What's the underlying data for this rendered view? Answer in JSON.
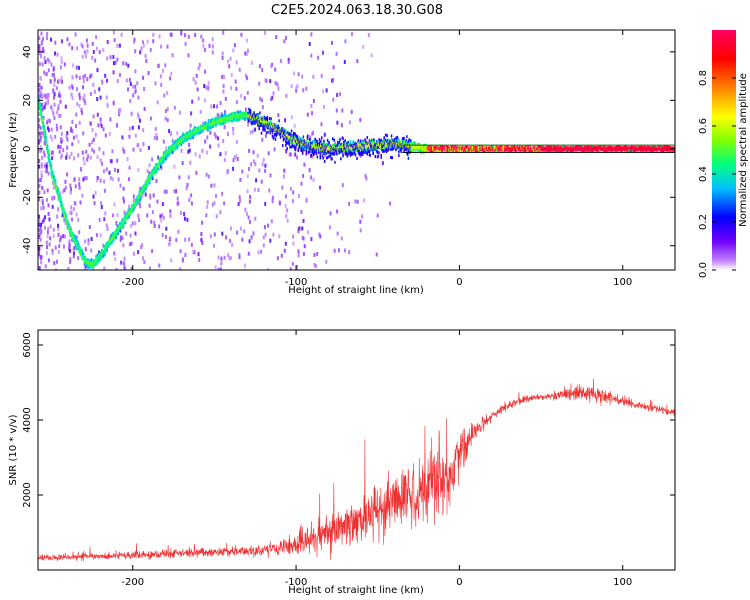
{
  "figure_title": "C2E5.2024.063.18.30.G08",
  "chart_data": [
    {
      "type": "heatmap",
      "xlabel": "Height of straight line (km)",
      "ylabel": "Frequency (Hz)",
      "xlim": [
        -258,
        132
      ],
      "ylim": [
        -50,
        49
      ],
      "xticks": [
        -200,
        -100,
        0,
        100
      ],
      "yticks": [
        -40,
        -20,
        0,
        20,
        40
      ],
      "xtick_labels": [
        "-200",
        "-100",
        "0",
        "100"
      ],
      "ytick_labels": [
        "-40",
        "-20",
        "0",
        "20",
        "40"
      ],
      "colorbar": {
        "label": "Normalized spectral amplitude",
        "range": [
          0,
          1
        ],
        "ticks": [
          0.0,
          0.2,
          0.4,
          0.6,
          0.8
        ],
        "tick_labels": [
          "0.0",
          "0.2",
          "0.4",
          "0.6",
          "0.8"
        ],
        "colormap": [
          "#ffffff",
          "#c080ff",
          "#7000ff",
          "#0000ff",
          "#00c0ff",
          "#00ff80",
          "#80ff00",
          "#ffff00",
          "#ff8000",
          "#ff0000",
          "#ff0060"
        ]
      },
      "ridge": {
        "x": [
          -258,
          -250,
          -240,
          -230,
          -225,
          -220,
          -210,
          -200,
          -190,
          -180,
          -170,
          -160,
          -150,
          -140,
          -130,
          -120,
          -110,
          -100,
          -90,
          -80,
          -70,
          -60,
          -50,
          -40,
          -30,
          -20,
          0,
          50,
          132
        ],
        "y": [
          20,
          -10,
          -32,
          -46,
          -48,
          -44,
          -34,
          -24,
          -12,
          -2,
          4,
          8,
          11,
          13,
          14,
          11,
          7,
          3,
          1,
          0,
          0.5,
          1,
          1.5,
          2,
          1,
          0,
          0,
          0,
          0
        ]
      },
      "reference_lines": [
        1.5,
        -1.5
      ]
    },
    {
      "type": "line",
      "xlabel": "Height of straight line (km)",
      "ylabel": "SNR (10 * v/v)",
      "xlim": [
        -258,
        132
      ],
      "ylim": [
        0,
        6400
      ],
      "xticks": [
        -200,
        -100,
        0,
        100
      ],
      "yticks": [
        2000,
        4000,
        6000
      ],
      "xtick_labels": [
        "-200",
        "-100",
        "0",
        "100"
      ],
      "ytick_labels": [
        "2000",
        "4000",
        "6000"
      ],
      "color": "#f03030",
      "series": [
        {
          "x": [
            -258,
            -240,
            -220,
            -200,
            -180,
            -160,
            -140,
            -120,
            -110,
            -100,
            -90,
            -80,
            -70,
            -60,
            -50,
            -40,
            -30,
            -20,
            -10,
            -5,
            0,
            5,
            10,
            15,
            20,
            30,
            40,
            50,
            60,
            70,
            75,
            80,
            90,
            100,
            110,
            120,
            132
          ],
          "values": [
            320,
            340,
            360,
            390,
            430,
            460,
            480,
            520,
            580,
            700,
            850,
            1000,
            1150,
            1300,
            1550,
            1800,
            2000,
            2100,
            2300,
            2500,
            3000,
            3400,
            3700,
            3900,
            4100,
            4400,
            4550,
            4600,
            4650,
            4700,
            4750,
            4700,
            4600,
            4500,
            4400,
            4300,
            4200
          ],
          "spread": [
            120,
            130,
            140,
            160,
            170,
            180,
            190,
            220,
            300,
            500,
            650,
            800,
            900,
            1000,
            1100,
            1200,
            1250,
            1300,
            1200,
            1200,
            900,
            600,
            350,
            250,
            180,
            150,
            130,
            120,
            150,
            300,
            400,
            350,
            300,
            200,
            150,
            150,
            150
          ]
        }
      ]
    }
  ]
}
